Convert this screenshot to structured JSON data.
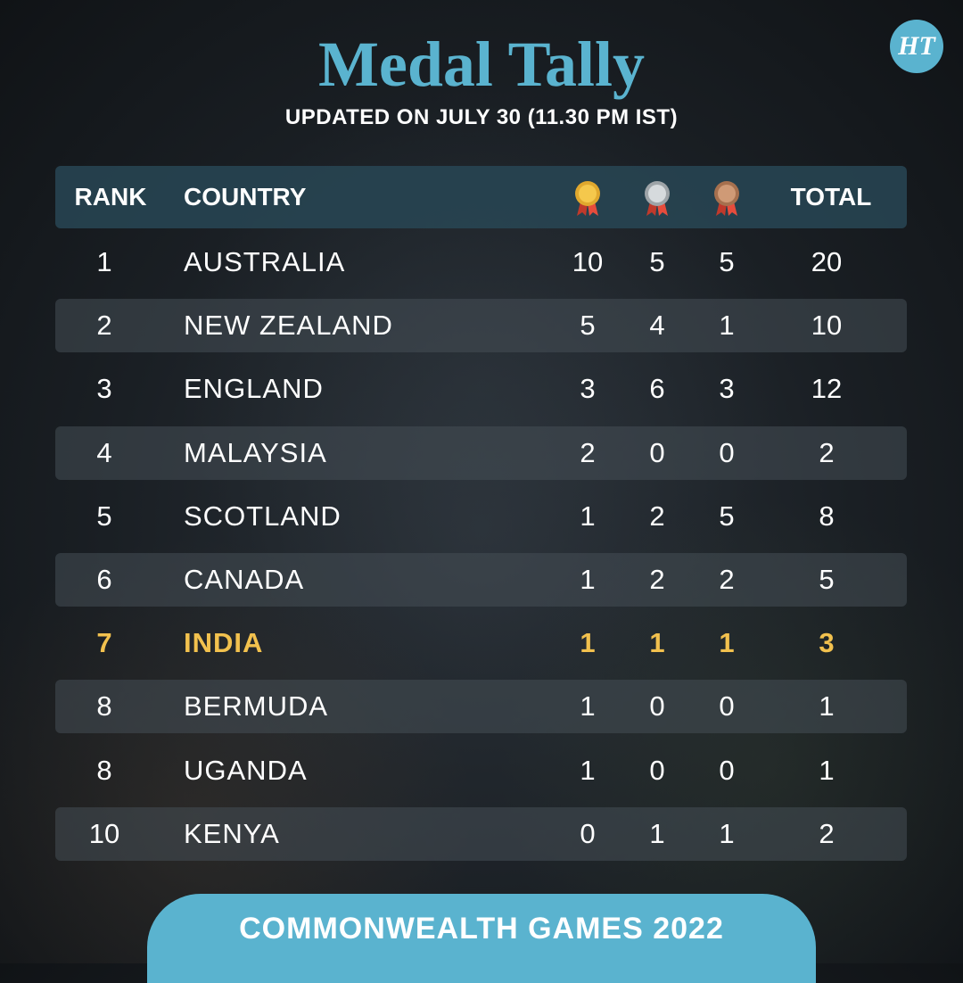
{
  "logo": {
    "text": "HT",
    "color": "#5ab3cf"
  },
  "title": "Medal Tally",
  "subtitle": "UPDATED ON JULY 30 (11.30 PM IST)",
  "table": {
    "headers": {
      "rank": "RANK",
      "country": "COUNTRY",
      "gold_icon": "gold-medal-icon",
      "silver_icon": "silver-medal-icon",
      "bronze_icon": "bronze-medal-icon",
      "total": "TOTAL"
    },
    "rows": [
      {
        "rank": "1",
        "country": "AUSTRALIA",
        "gold": "10",
        "silver": "5",
        "bronze": "5",
        "total": "20"
      },
      {
        "rank": "2",
        "country": "NEW ZEALAND",
        "gold": "5",
        "silver": "4",
        "bronze": "1",
        "total": "10"
      },
      {
        "rank": "3",
        "country": "ENGLAND",
        "gold": "3",
        "silver": "6",
        "bronze": "3",
        "total": "12"
      },
      {
        "rank": "4",
        "country": "MALAYSIA",
        "gold": "2",
        "silver": "0",
        "bronze": "0",
        "total": "2"
      },
      {
        "rank": "5",
        "country": "SCOTLAND",
        "gold": "1",
        "silver": "2",
        "bronze": "5",
        "total": "8"
      },
      {
        "rank": "6",
        "country": "CANADA",
        "gold": "1",
        "silver": "2",
        "bronze": "2",
        "total": "5"
      },
      {
        "rank": "7",
        "country": "INDIA",
        "gold": "1",
        "silver": "1",
        "bronze": "1",
        "total": "3"
      },
      {
        "rank": "8",
        "country": "BERMUDA",
        "gold": "1",
        "silver": "0",
        "bronze": "0",
        "total": "1"
      },
      {
        "rank": "8",
        "country": "UGANDA",
        "gold": "1",
        "silver": "0",
        "bronze": "0",
        "total": "1"
      },
      {
        "rank": "10",
        "country": "KENYA",
        "gold": "0",
        "silver": "1",
        "bronze": "1",
        "total": "2"
      }
    ],
    "highlight_color": "#f2c14e"
  },
  "footer": "COMMONWEALTH GAMES 2022"
}
